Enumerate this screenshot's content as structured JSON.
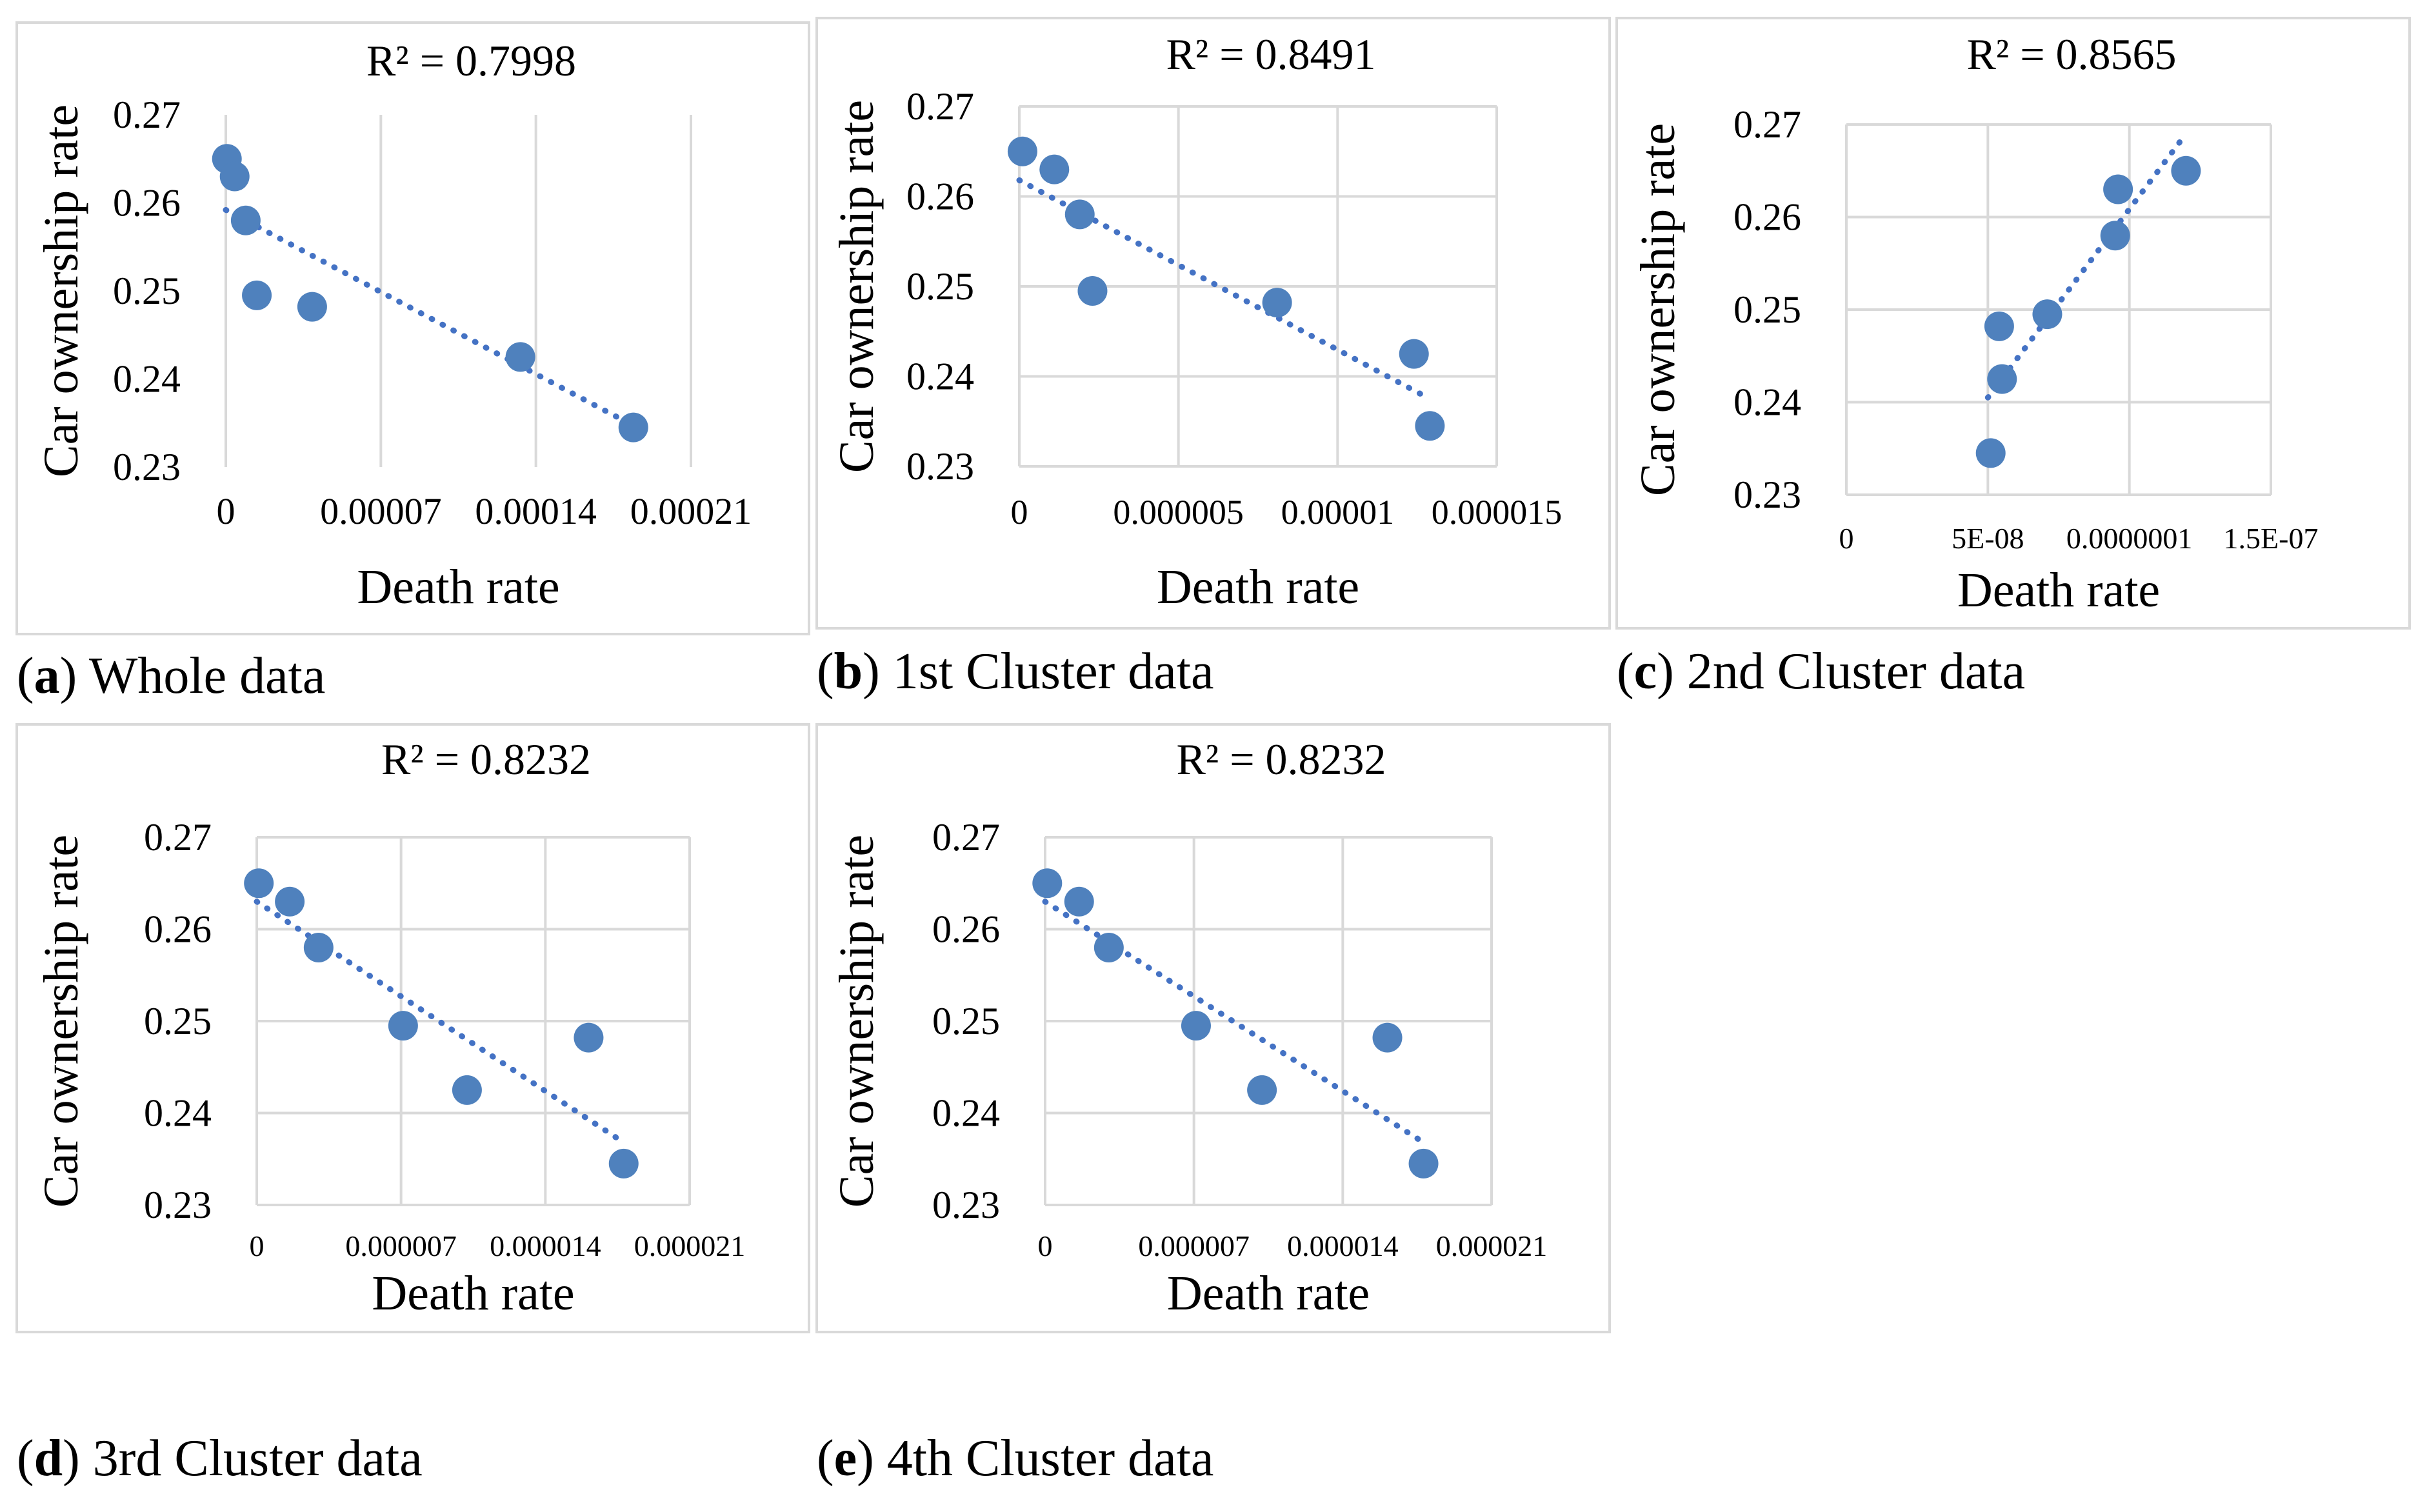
{
  "colors": {
    "marker": "#4F81BD",
    "trend": "#4472C4",
    "grid": "#D9D9D9",
    "frame": "#D9D9D9"
  },
  "charts": [
    {
      "caption_letter": "a",
      "caption_text": " Whole data"
    },
    {
      "caption_letter": "b",
      "caption_text": " 1st Cluster data"
    },
    {
      "caption_letter": "c",
      "caption_text": " 2nd Cluster data"
    },
    {
      "caption_letter": "d",
      "caption_text": " 3rd Cluster data"
    },
    {
      "caption_letter": "e",
      "caption_text": " 4th Cluster data"
    }
  ],
  "chart_data": [
    {
      "type": "scatter",
      "title": "R² = 0.7998",
      "xlabel": "Death rate",
      "ylabel": "Car ownership rate",
      "xlim": [
        0,
        0.00021
      ],
      "ylim": [
        0.23,
        0.27
      ],
      "xticks": [
        0,
        7e-05,
        0.00014,
        0.00021
      ],
      "xtick_labels": [
        "0",
        "0.00007",
        "0.00014",
        "0.00021"
      ],
      "yticks": [
        0.23,
        0.24,
        0.25,
        0.26,
        0.27
      ],
      "ytick_labels": [
        "0.23",
        "0.24",
        "0.25",
        "0.26",
        "0.27"
      ],
      "grid": "vertical",
      "points": [
        {
          "x": 5e-07,
          "y": 0.265
        },
        {
          "x": 4e-06,
          "y": 0.263
        },
        {
          "x": 9e-06,
          "y": 0.258
        },
        {
          "x": 1.4e-05,
          "y": 0.2495
        },
        {
          "x": 3.9e-05,
          "y": 0.2482
        },
        {
          "x": 0.000133,
          "y": 0.2425
        },
        {
          "x": 0.000184,
          "y": 0.2345
        }
      ],
      "trendline": {
        "type": "linear",
        "x": [
          0,
          0.000184
        ],
        "y": [
          0.2592,
          0.2347
        ]
      }
    },
    {
      "type": "scatter",
      "title": "R² = 0.8491",
      "xlabel": "Death rate",
      "ylabel": "Car ownership rate",
      "xlim": [
        0,
        1.5e-05
      ],
      "ylim": [
        0.23,
        0.27
      ],
      "xticks": [
        0,
        5e-06,
        1e-05,
        1.5e-05
      ],
      "xtick_labels": [
        "0",
        "0.000005",
        "0.00001",
        "0.000015"
      ],
      "yticks": [
        0.23,
        0.24,
        0.25,
        0.26,
        0.27
      ],
      "ytick_labels": [
        "0.23",
        "0.24",
        "0.25",
        "0.26",
        "0.27"
      ],
      "grid": "both",
      "points": [
        {
          "x": 1e-07,
          "y": 0.265
        },
        {
          "x": 1.1e-06,
          "y": 0.263
        },
        {
          "x": 1.9e-06,
          "y": 0.258
        },
        {
          "x": 2.3e-06,
          "y": 0.2495
        },
        {
          "x": 8.1e-06,
          "y": 0.2482
        },
        {
          "x": 1.24e-05,
          "y": 0.2425
        },
        {
          "x": 1.29e-05,
          "y": 0.2345
        }
      ],
      "trendline": {
        "type": "linear",
        "x": [
          0,
          1.29e-05
        ],
        "y": [
          0.2618,
          0.2375
        ]
      }
    },
    {
      "type": "scatter",
      "title": "R² = 0.8565",
      "xlabel": "Death rate",
      "ylabel": "Car ownership rate",
      "xlim": [
        0,
        1.5e-07
      ],
      "ylim": [
        0.23,
        0.27
      ],
      "xticks": [
        0,
        5e-08,
        1e-07,
        1.5e-07
      ],
      "xtick_labels": [
        "0",
        "5E-08",
        "0.0000001",
        "1.5E-07"
      ],
      "yticks": [
        0.23,
        0.24,
        0.25,
        0.26,
        0.27
      ],
      "ytick_labels": [
        "0.23",
        "0.24",
        "0.25",
        "0.26",
        "0.27"
      ],
      "grid": "both",
      "points": [
        {
          "x": 5.1e-08,
          "y": 0.2345
        },
        {
          "x": 5.5e-08,
          "y": 0.2425
        },
        {
          "x": 5.4e-08,
          "y": 0.2482
        },
        {
          "x": 7.1e-08,
          "y": 0.2495
        },
        {
          "x": 9.5e-08,
          "y": 0.258
        },
        {
          "x": 9.6e-08,
          "y": 0.263
        },
        {
          "x": 1.2e-07,
          "y": 0.265
        }
      ],
      "trendline": {
        "type": "linear",
        "x": [
          5e-08,
          1.2e-07
        ],
        "y": [
          0.2405,
          0.269
        ]
      }
    },
    {
      "type": "scatter",
      "title": "R² = 0.8232",
      "xlabel": "Death rate",
      "ylabel": "Car ownership rate",
      "xlim": [
        0,
        2.1e-05
      ],
      "ylim": [
        0.23,
        0.27
      ],
      "xticks": [
        0,
        7e-06,
        1.4e-05,
        2.1e-05
      ],
      "xtick_labels": [
        "0",
        "0.000007",
        "0.000014",
        "0.000021"
      ],
      "yticks": [
        0.23,
        0.24,
        0.25,
        0.26,
        0.27
      ],
      "ytick_labels": [
        "0.23",
        "0.24",
        "0.25",
        "0.26",
        "0.27"
      ],
      "grid": "both",
      "points": [
        {
          "x": 1e-07,
          "y": 0.265
        },
        {
          "x": 1.6e-06,
          "y": 0.263
        },
        {
          "x": 3e-06,
          "y": 0.258
        },
        {
          "x": 7.1e-06,
          "y": 0.2495
        },
        {
          "x": 1.02e-05,
          "y": 0.2425
        },
        {
          "x": 1.61e-05,
          "y": 0.2482
        },
        {
          "x": 1.78e-05,
          "y": 0.2345
        }
      ],
      "trendline": {
        "type": "linear",
        "x": [
          0,
          1.78e-05
        ],
        "y": [
          0.263,
          0.2368
        ]
      }
    },
    {
      "type": "scatter",
      "title": "R² = 0.8232",
      "xlabel": "Death rate",
      "ylabel": "Car ownership rate",
      "xlim": [
        0,
        2.1e-05
      ],
      "ylim": [
        0.23,
        0.27
      ],
      "xticks": [
        0,
        7e-06,
        1.4e-05,
        2.1e-05
      ],
      "xtick_labels": [
        "0",
        "0.000007",
        "0.000014",
        "0.000021"
      ],
      "yticks": [
        0.23,
        0.24,
        0.25,
        0.26,
        0.27
      ],
      "ytick_labels": [
        "0.23",
        "0.24",
        "0.25",
        "0.26",
        "0.27"
      ],
      "grid": "both",
      "points": [
        {
          "x": 1e-07,
          "y": 0.265
        },
        {
          "x": 1.6e-06,
          "y": 0.263
        },
        {
          "x": 3e-06,
          "y": 0.258
        },
        {
          "x": 7.1e-06,
          "y": 0.2495
        },
        {
          "x": 1.02e-05,
          "y": 0.2425
        },
        {
          "x": 1.61e-05,
          "y": 0.2482
        },
        {
          "x": 1.78e-05,
          "y": 0.2345
        }
      ],
      "trendline": {
        "type": "linear",
        "x": [
          0,
          1.78e-05
        ],
        "y": [
          0.263,
          0.2368
        ]
      }
    }
  ]
}
